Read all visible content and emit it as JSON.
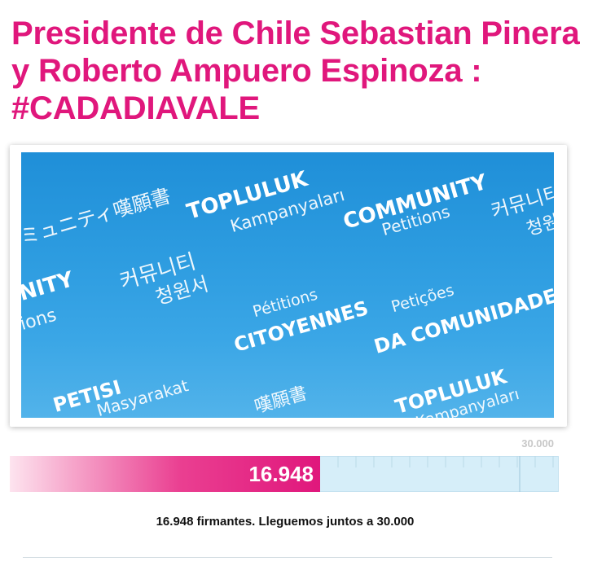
{
  "petition": {
    "title": "Presidente de Chile Sebastian Pinera y Roberto Ampuero Espinoza : #CADADIAVALE"
  },
  "banner": {
    "words": [
      {
        "text": "ミュニティ嘆願書",
        "style": "thin"
      },
      {
        "text": "TOPLULUK",
        "style": "bold"
      },
      {
        "text": "Kampanyaları",
        "style": "thin"
      },
      {
        "text": "COMMUNITY",
        "style": "bold"
      },
      {
        "text": "Petitions",
        "style": "thin"
      },
      {
        "text": "커뮤니티",
        "style": "thin"
      },
      {
        "text": "청원서",
        "style": "thin"
      },
      {
        "text": "NITY",
        "style": "bold"
      },
      {
        "text": "ions",
        "style": "thin"
      },
      {
        "text": "커뮤니티",
        "style": "thin"
      },
      {
        "text": "청원서",
        "style": "thin"
      },
      {
        "text": "Pétitions",
        "style": "thin"
      },
      {
        "text": "CITOYENNES",
        "style": "bold"
      },
      {
        "text": "Petições",
        "style": "thin"
      },
      {
        "text": "DA COMUNIDADE",
        "style": "bold"
      },
      {
        "text": "PETISI",
        "style": "bold"
      },
      {
        "text": "Masyarakat",
        "style": "thin"
      },
      {
        "text": "嘆願書",
        "style": "thin"
      },
      {
        "text": "TOPLULUK",
        "style": "bold"
      },
      {
        "text": "Kampanyaları",
        "style": "thin"
      }
    ]
  },
  "progress": {
    "current": 16948,
    "current_label": "16.948",
    "goal": 30000,
    "goal_label": "30.000",
    "fraction": 0.565,
    "caption": "16.948 firmantes. Lleguemos juntos a 30.000"
  },
  "colors": {
    "accent": "#e0177c",
    "track": "#d6eef9",
    "banner_blue": "#2d9ce0"
  }
}
